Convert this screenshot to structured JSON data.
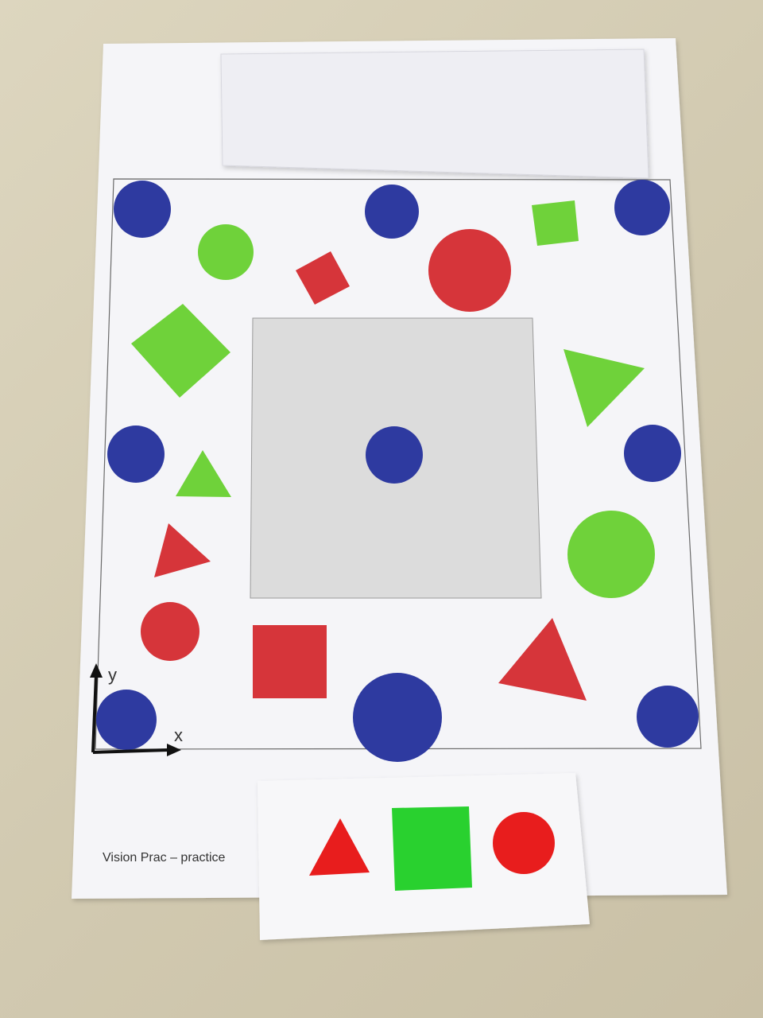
{
  "sheet": {
    "title": "Vision Prac – practice",
    "axis_x_label": "x",
    "axis_y_label": "y"
  },
  "colors": {
    "blue": "#2e3aa0",
    "green": "#6fd23a",
    "red": "#d6353a",
    "bright_green": "#29d12f",
    "bright_red": "#e81d1d",
    "center_box": "#dcdcdc",
    "paper": "#f4f4f6",
    "table": "#d6ceb6"
  },
  "shapes": [
    {
      "kind": "circle",
      "color": "blue",
      "place": "top-left corner"
    },
    {
      "kind": "circle",
      "color": "blue",
      "place": "top middle"
    },
    {
      "kind": "circle",
      "color": "blue",
      "place": "top-right corner"
    },
    {
      "kind": "circle",
      "color": "green",
      "place": "upper left"
    },
    {
      "kind": "square",
      "color": "red",
      "place": "upper left-center"
    },
    {
      "kind": "circle",
      "color": "red",
      "place": "upper center"
    },
    {
      "kind": "square",
      "color": "green",
      "place": "upper right"
    },
    {
      "kind": "square",
      "color": "green",
      "place": "left"
    },
    {
      "kind": "triangle",
      "color": "green",
      "place": "right"
    },
    {
      "kind": "circle",
      "color": "blue",
      "place": "middle left"
    },
    {
      "kind": "circle",
      "color": "blue",
      "place": "middle right"
    },
    {
      "kind": "triangle",
      "color": "green",
      "place": "middle left"
    },
    {
      "kind": "triangle",
      "color": "red",
      "place": "lower left"
    },
    {
      "kind": "circle",
      "color": "green",
      "place": "lower right"
    },
    {
      "kind": "circle",
      "color": "red",
      "place": "lower left"
    },
    {
      "kind": "square",
      "color": "red",
      "place": "bottom left-center"
    },
    {
      "kind": "triangle",
      "color": "red",
      "place": "bottom right"
    },
    {
      "kind": "circle",
      "color": "blue",
      "place": "bottom-left corner"
    },
    {
      "kind": "circle",
      "color": "blue",
      "place": "bottom center"
    },
    {
      "kind": "circle",
      "color": "blue",
      "place": "bottom-right corner"
    },
    {
      "kind": "circle",
      "color": "blue",
      "place": "center of grey box"
    }
  ],
  "legend_card": [
    {
      "kind": "triangle",
      "color": "bright_red"
    },
    {
      "kind": "square",
      "color": "bright_green"
    },
    {
      "kind": "circle",
      "color": "bright_red"
    }
  ]
}
